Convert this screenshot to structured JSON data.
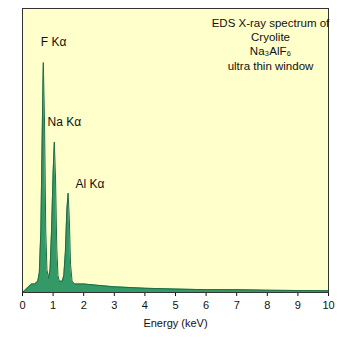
{
  "chart_data": {
    "type": "area",
    "title": "EDS X-ray spectrum of\nCryolite\nNa₃AlF₆\nultra thin window",
    "x_label": "Energy (keV)",
    "x": [
      0,
      0.1,
      0.2,
      0.3,
      0.4,
      0.5,
      0.55,
      0.6,
      0.65,
      0.68,
      0.72,
      0.76,
      0.8,
      0.85,
      0.9,
      0.95,
      1.0,
      1.04,
      1.08,
      1.12,
      1.16,
      1.2,
      1.3,
      1.35,
      1.4,
      1.45,
      1.49,
      1.53,
      1.57,
      1.62,
      1.7,
      1.8,
      2.0,
      2.5,
      3,
      4,
      5,
      6,
      7,
      8,
      9,
      10
    ],
    "values": [
      0,
      1,
      2,
      3,
      3,
      4,
      7,
      22,
      60,
      81,
      60,
      22,
      8,
      5,
      8,
      22,
      42,
      53,
      40,
      16,
      6,
      4,
      4,
      6,
      14,
      29,
      35,
      26,
      10,
      4,
      3,
      3,
      3,
      2.5,
      2,
      1.5,
      1.2,
      1,
      1,
      0.8,
      0.7,
      0.6
    ],
    "color": "#339966",
    "xlim": [
      0,
      10
    ],
    "xticks": [
      0,
      1,
      2,
      3,
      4,
      5,
      6,
      7,
      8,
      9,
      10
    ],
    "ylim": [
      0,
      100
    ],
    "tick_labels": "x",
    "grid": false,
    "annotations": [
      {
        "text": "F Kα",
        "x": 0.6,
        "y": 88
      },
      {
        "text": "Na Kα",
        "x": 0.82,
        "y": 60
      },
      {
        "text": "Al Kα",
        "x": 1.73,
        "y": 38
      }
    ]
  }
}
